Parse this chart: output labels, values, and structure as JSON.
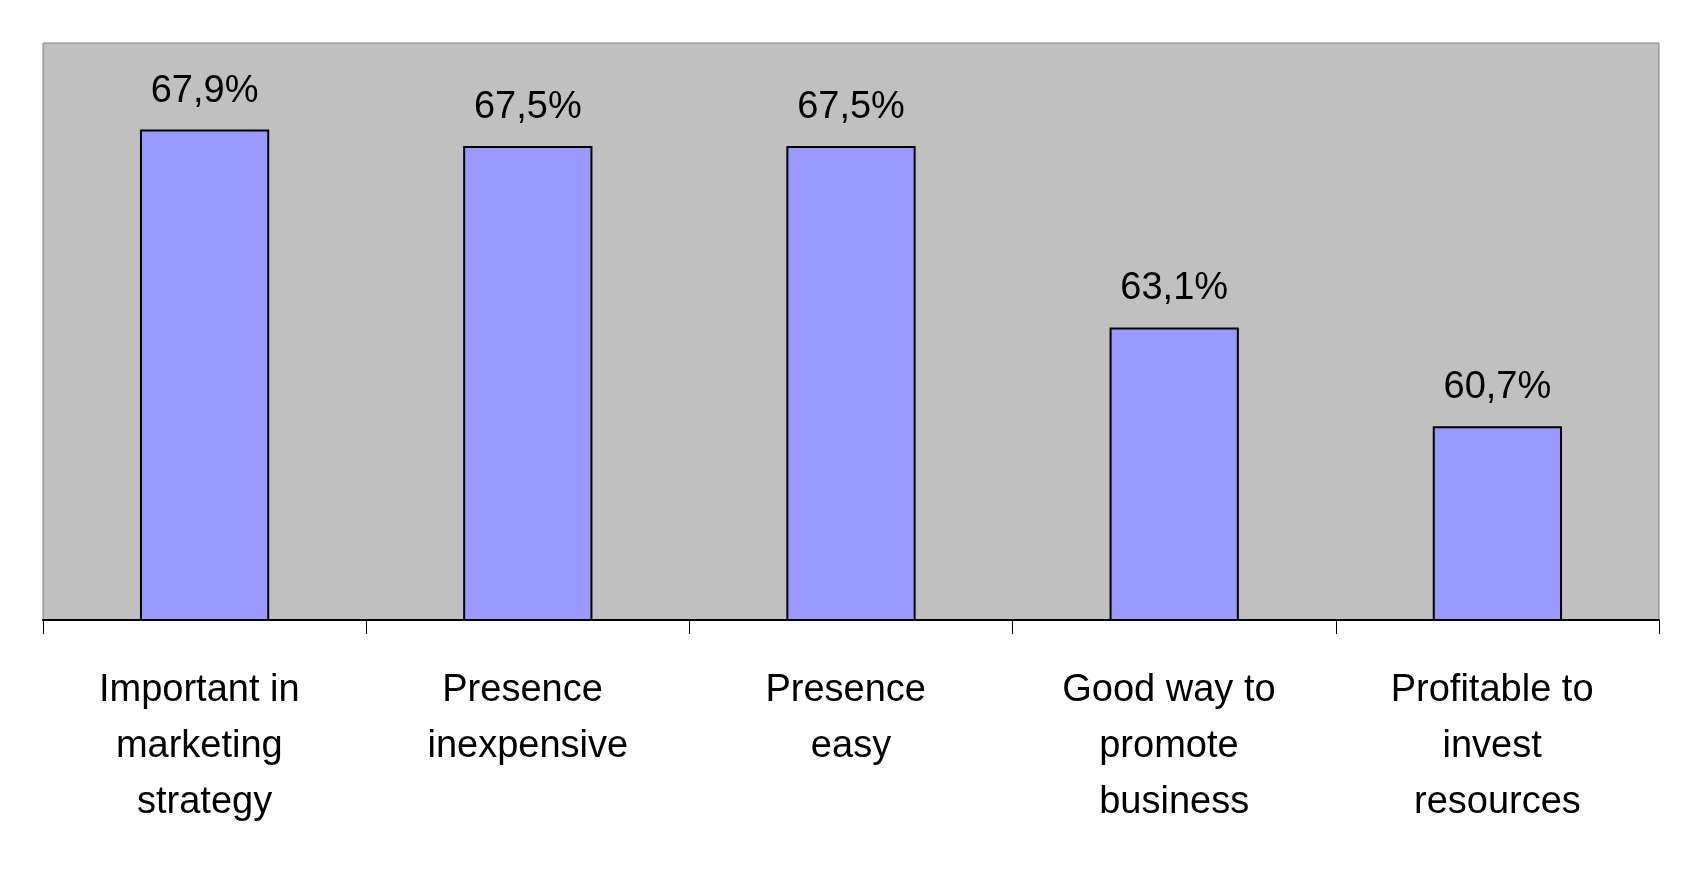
{
  "chart_data": {
    "type": "bar",
    "categories": [
      "Important in marketing strategy",
      "Presence inexpensive",
      "Presence easy",
      "Good way to promote business",
      "Profitable to invest resources"
    ],
    "values": [
      67.9,
      67.5,
      67.5,
      63.1,
      60.7
    ],
    "value_labels": [
      "67,9%",
      "67,5%",
      "67,5%",
      "63,1%",
      "60,7%"
    ],
    "color": "#9999ff",
    "ylim": [
      56,
      70
    ],
    "tick_labels": "x",
    "grid": false
  }
}
